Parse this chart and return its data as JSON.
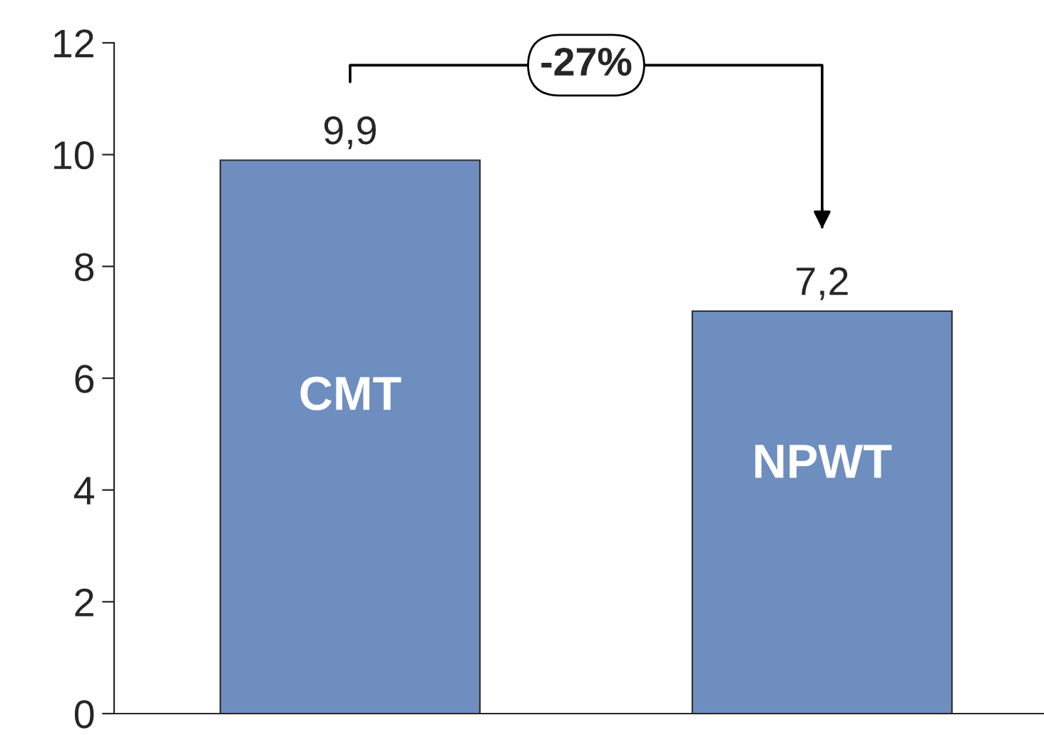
{
  "chart_data": {
    "type": "bar",
    "categories": [
      "CMT",
      "NPWT"
    ],
    "values": [
      9.9,
      7.2
    ],
    "value_labels": [
      "9,9",
      "7,2"
    ],
    "color": "#6e8ebf",
    "ylim": [
      0,
      12
    ],
    "yticks": [
      0,
      2,
      4,
      6,
      8,
      10,
      12
    ],
    "annotations": [
      "-27%"
    ],
    "grid": false,
    "legend": false
  }
}
